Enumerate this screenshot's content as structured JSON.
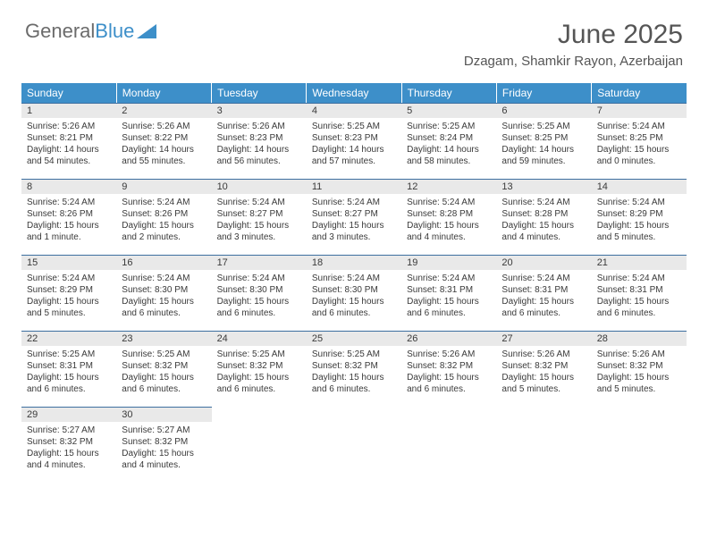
{
  "logo": {
    "text1": "General",
    "text2": "Blue"
  },
  "title": "June 2025",
  "location": "Dzagam, Shamkir Rayon, Azerbaijan",
  "colors": {
    "header_bg": "#3d8fc9",
    "header_text": "#ffffff",
    "daynum_bg": "#e9e9e9",
    "daynum_border": "#3d6fa0",
    "body_text": "#3a3a3a",
    "title_text": "#555555",
    "logo_gray": "#6b6b6b"
  },
  "weekdays": [
    "Sunday",
    "Monday",
    "Tuesday",
    "Wednesday",
    "Thursday",
    "Friday",
    "Saturday"
  ],
  "weeks": [
    [
      {
        "n": "1",
        "sr": "5:26 AM",
        "ss": "8:21 PM",
        "dl": "14 hours and 54 minutes."
      },
      {
        "n": "2",
        "sr": "5:26 AM",
        "ss": "8:22 PM",
        "dl": "14 hours and 55 minutes."
      },
      {
        "n": "3",
        "sr": "5:26 AM",
        "ss": "8:23 PM",
        "dl": "14 hours and 56 minutes."
      },
      {
        "n": "4",
        "sr": "5:25 AM",
        "ss": "8:23 PM",
        "dl": "14 hours and 57 minutes."
      },
      {
        "n": "5",
        "sr": "5:25 AM",
        "ss": "8:24 PM",
        "dl": "14 hours and 58 minutes."
      },
      {
        "n": "6",
        "sr": "5:25 AM",
        "ss": "8:25 PM",
        "dl": "14 hours and 59 minutes."
      },
      {
        "n": "7",
        "sr": "5:24 AM",
        "ss": "8:25 PM",
        "dl": "15 hours and 0 minutes."
      }
    ],
    [
      {
        "n": "8",
        "sr": "5:24 AM",
        "ss": "8:26 PM",
        "dl": "15 hours and 1 minute."
      },
      {
        "n": "9",
        "sr": "5:24 AM",
        "ss": "8:26 PM",
        "dl": "15 hours and 2 minutes."
      },
      {
        "n": "10",
        "sr": "5:24 AM",
        "ss": "8:27 PM",
        "dl": "15 hours and 3 minutes."
      },
      {
        "n": "11",
        "sr": "5:24 AM",
        "ss": "8:27 PM",
        "dl": "15 hours and 3 minutes."
      },
      {
        "n": "12",
        "sr": "5:24 AM",
        "ss": "8:28 PM",
        "dl": "15 hours and 4 minutes."
      },
      {
        "n": "13",
        "sr": "5:24 AM",
        "ss": "8:28 PM",
        "dl": "15 hours and 4 minutes."
      },
      {
        "n": "14",
        "sr": "5:24 AM",
        "ss": "8:29 PM",
        "dl": "15 hours and 5 minutes."
      }
    ],
    [
      {
        "n": "15",
        "sr": "5:24 AM",
        "ss": "8:29 PM",
        "dl": "15 hours and 5 minutes."
      },
      {
        "n": "16",
        "sr": "5:24 AM",
        "ss": "8:30 PM",
        "dl": "15 hours and 6 minutes."
      },
      {
        "n": "17",
        "sr": "5:24 AM",
        "ss": "8:30 PM",
        "dl": "15 hours and 6 minutes."
      },
      {
        "n": "18",
        "sr": "5:24 AM",
        "ss": "8:30 PM",
        "dl": "15 hours and 6 minutes."
      },
      {
        "n": "19",
        "sr": "5:24 AM",
        "ss": "8:31 PM",
        "dl": "15 hours and 6 minutes."
      },
      {
        "n": "20",
        "sr": "5:24 AM",
        "ss": "8:31 PM",
        "dl": "15 hours and 6 minutes."
      },
      {
        "n": "21",
        "sr": "5:24 AM",
        "ss": "8:31 PM",
        "dl": "15 hours and 6 minutes."
      }
    ],
    [
      {
        "n": "22",
        "sr": "5:25 AM",
        "ss": "8:31 PM",
        "dl": "15 hours and 6 minutes."
      },
      {
        "n": "23",
        "sr": "5:25 AM",
        "ss": "8:32 PM",
        "dl": "15 hours and 6 minutes."
      },
      {
        "n": "24",
        "sr": "5:25 AM",
        "ss": "8:32 PM",
        "dl": "15 hours and 6 minutes."
      },
      {
        "n": "25",
        "sr": "5:25 AM",
        "ss": "8:32 PM",
        "dl": "15 hours and 6 minutes."
      },
      {
        "n": "26",
        "sr": "5:26 AM",
        "ss": "8:32 PM",
        "dl": "15 hours and 6 minutes."
      },
      {
        "n": "27",
        "sr": "5:26 AM",
        "ss": "8:32 PM",
        "dl": "15 hours and 5 minutes."
      },
      {
        "n": "28",
        "sr": "5:26 AM",
        "ss": "8:32 PM",
        "dl": "15 hours and 5 minutes."
      }
    ],
    [
      {
        "n": "29",
        "sr": "5:27 AM",
        "ss": "8:32 PM",
        "dl": "15 hours and 4 minutes."
      },
      {
        "n": "30",
        "sr": "5:27 AM",
        "ss": "8:32 PM",
        "dl": "15 hours and 4 minutes."
      },
      null,
      null,
      null,
      null,
      null
    ]
  ],
  "labels": {
    "sunrise": "Sunrise: ",
    "sunset": "Sunset: ",
    "daylight": "Daylight: "
  }
}
